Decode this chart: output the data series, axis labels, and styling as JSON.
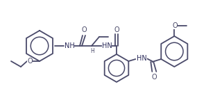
{
  "bg_color": "#ffffff",
  "line_color": "#4a4a6a",
  "line_color2": "#2a2a5a",
  "line_width": 1.3,
  "font_size": 7.0,
  "font_size_s": 5.5,
  "xlim": [
    0,
    284
  ],
  "ylim": [
    0,
    128
  ]
}
